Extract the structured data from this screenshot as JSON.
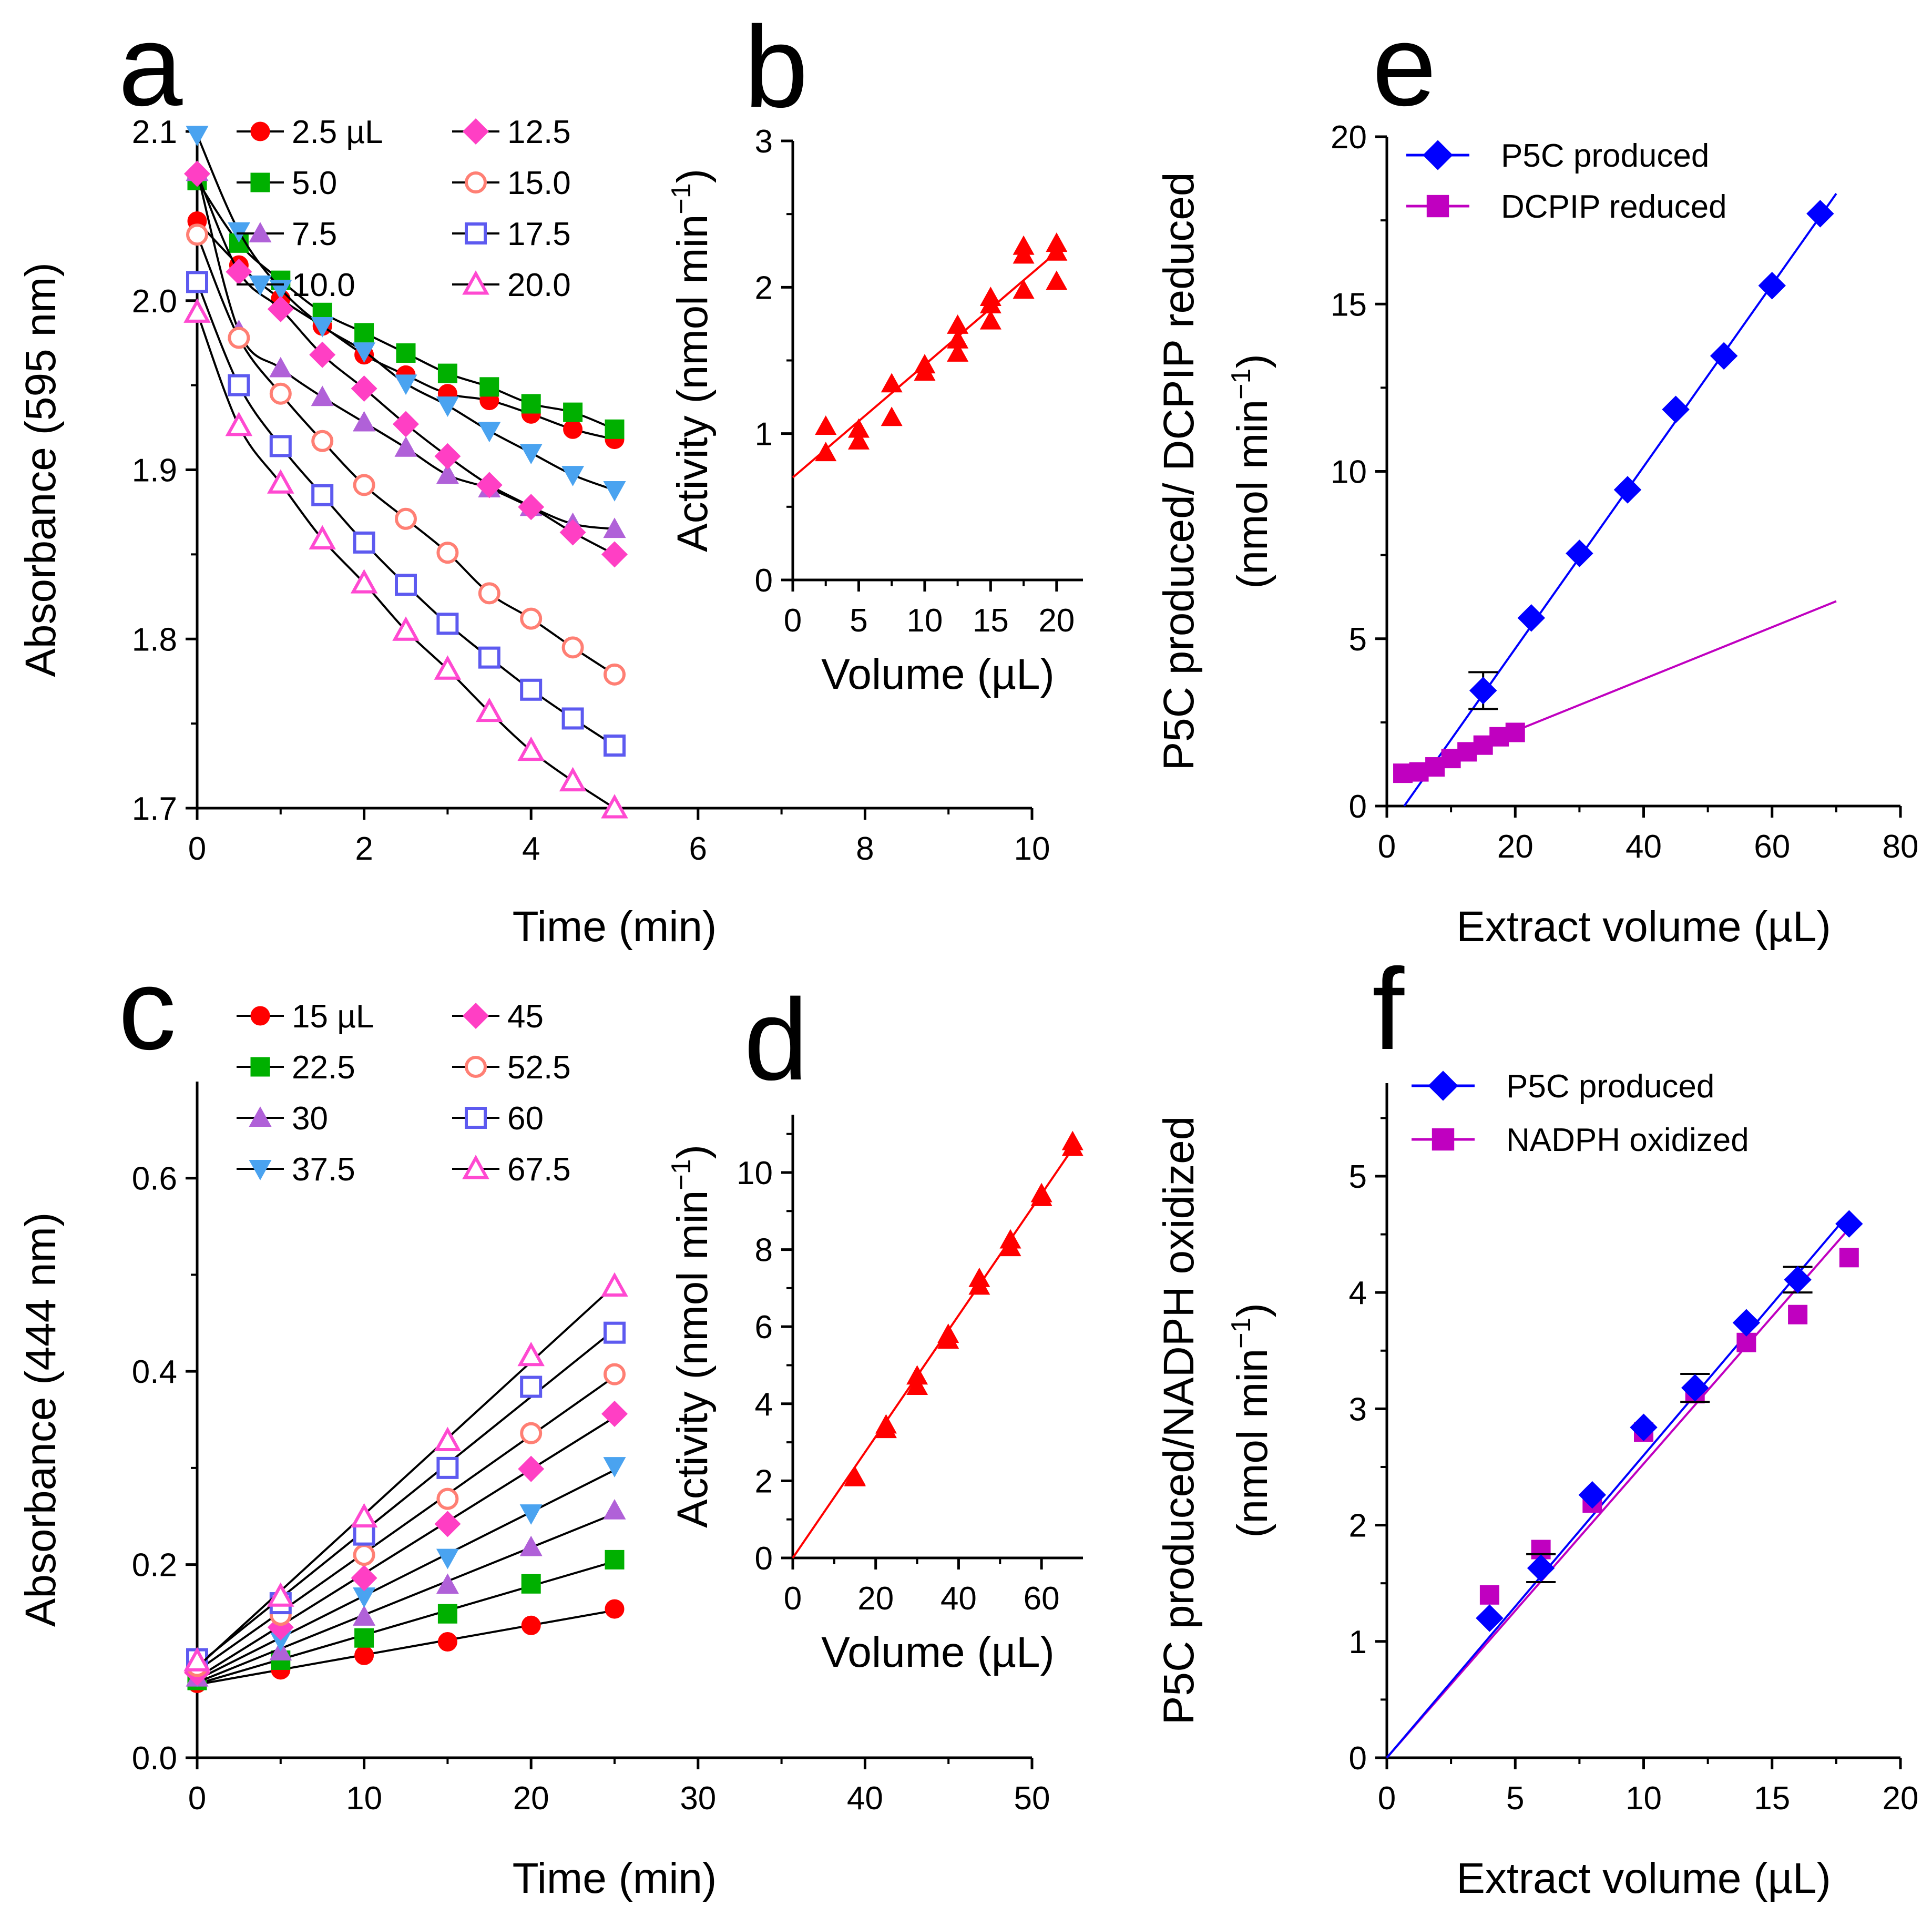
{
  "chart_data": [
    {
      "panel": "a",
      "type": "scatter",
      "xlabel": "Time (min)",
      "ylabel": "Absorbance (595 nm)",
      "xlim": [
        0,
        10
      ],
      "ylim": [
        1.7,
        2.1
      ],
      "xticks": [
        "0",
        "2",
        "4",
        "6",
        "8",
        "10"
      ],
      "yticks": [
        "1.7",
        "1.8",
        "1.9",
        "2.0",
        "2.1"
      ],
      "x": [
        0,
        0.5,
        1,
        1.5,
        2,
        2.5,
        3,
        3.5,
        4,
        4.5,
        5
      ],
      "series": [
        {
          "name": "2.5 µL",
          "marker": "circle-filled",
          "color": "#ff0000",
          "values": [
            2.047,
            2.021,
            2.001,
            1.985,
            1.968,
            1.956,
            1.945,
            1.941,
            1.933,
            1.924,
            1.918
          ]
        },
        {
          "name": "5.0",
          "marker": "square-filled",
          "color": "#00b000",
          "values": [
            2.071,
            2.034,
            2.012,
            1.993,
            1.981,
            1.969,
            1.957,
            1.949,
            1.939,
            1.934,
            1.924
          ]
        },
        {
          "name": "7.5",
          "marker": "triangle-up-filled",
          "color": "#b061d8",
          "values": [
            2.076,
            1.982,
            1.96,
            1.943,
            1.928,
            1.913,
            1.897,
            1.889,
            1.878,
            1.868,
            1.865
          ]
        },
        {
          "name": "10.0",
          "marker": "triangle-down-filled",
          "color": "#4aa3f0",
          "values": [
            2.098,
            2.041,
            2.007,
            1.985,
            1.97,
            1.951,
            1.938,
            1.923,
            1.91,
            1.897,
            1.888
          ]
        },
        {
          "name": "12.5",
          "marker": "diamond-filled",
          "color": "#ff3fc4",
          "values": [
            2.075,
            2.017,
            1.995,
            1.968,
            1.948,
            1.927,
            1.908,
            1.891,
            1.878,
            1.863,
            1.85
          ]
        },
        {
          "name": "15.0",
          "marker": "circle-open",
          "color": "#ff7f74",
          "values": [
            2.039,
            1.978,
            1.945,
            1.917,
            1.891,
            1.871,
            1.851,
            1.827,
            1.812,
            1.795,
            1.779
          ]
        },
        {
          "name": "17.5",
          "marker": "square-open",
          "color": "#5d5af0",
          "values": [
            2.011,
            1.95,
            1.914,
            1.885,
            1.857,
            1.832,
            1.809,
            1.789,
            1.77,
            1.753,
            1.737
          ]
        },
        {
          "name": "20.0",
          "marker": "triangle-open",
          "color": "#ff49d1",
          "values": [
            1.993,
            1.926,
            1.892,
            1.859,
            1.833,
            1.805,
            1.782,
            1.757,
            1.734,
            1.716,
            1.7
          ]
        }
      ]
    },
    {
      "panel": "b",
      "type": "scatter",
      "xlabel": "Volume (µL)",
      "ylabel": "Activity (nmol min",
      "ylabel_sup": "−1",
      "ylabel_tail": ")",
      "xlim": [
        0,
        22
      ],
      "ylim": [
        0,
        3
      ],
      "xticks": [
        "0",
        "5",
        "10",
        "15",
        "20"
      ],
      "yticks": [
        "0",
        "1",
        "2",
        "3"
      ],
      "color": "#ff0000",
      "points": [
        {
          "x": 2.5,
          "y": 0.87
        },
        {
          "x": 2.5,
          "y": 1.05
        },
        {
          "x": 5.0,
          "y": 0.95
        },
        {
          "x": 5.0,
          "y": 1.03
        },
        {
          "x": 7.5,
          "y": 1.11
        },
        {
          "x": 7.5,
          "y": 1.34
        },
        {
          "x": 10.0,
          "y": 1.42
        },
        {
          "x": 10.0,
          "y": 1.47
        },
        {
          "x": 12.5,
          "y": 1.55
        },
        {
          "x": 12.5,
          "y": 1.64
        },
        {
          "x": 12.5,
          "y": 1.74
        },
        {
          "x": 15.0,
          "y": 1.77
        },
        {
          "x": 15.0,
          "y": 1.88
        },
        {
          "x": 15.0,
          "y": 1.93
        },
        {
          "x": 17.5,
          "y": 1.98
        },
        {
          "x": 17.5,
          "y": 2.22
        },
        {
          "x": 17.5,
          "y": 2.28
        },
        {
          "x": 20.0,
          "y": 2.04
        },
        {
          "x": 20.0,
          "y": 2.24
        },
        {
          "x": 20.0,
          "y": 2.3
        }
      ],
      "fit": {
        "x": [
          0,
          20
        ],
        "y": [
          0.7,
          2.24
        ]
      }
    },
    {
      "panel": "c",
      "type": "scatter",
      "xlabel": "Time (min)",
      "ylabel": "Absorbance (444 nm)",
      "xlim": [
        0,
        50
      ],
      "ylim": [
        0,
        0.7
      ],
      "xticks": [
        "0",
        "10",
        "20",
        "30",
        "40",
        "50"
      ],
      "yticks": [
        "0.0",
        "0.2",
        "0.4",
        "0.6"
      ],
      "x": [
        0,
        5,
        10,
        15,
        20,
        25
      ],
      "series": [
        {
          "name": "15 µL",
          "marker": "circle-filled",
          "color": "#ff0000",
          "values": [
            0.077,
            0.091,
            0.106,
            0.12,
            0.137,
            0.154
          ]
        },
        {
          "name": "22.5",
          "marker": "square-filled",
          "color": "#00b000",
          "values": [
            0.08,
            0.101,
            0.124,
            0.149,
            0.18,
            0.205
          ]
        },
        {
          "name": "30",
          "marker": "triangle-up-filled",
          "color": "#b061d8",
          "values": [
            0.083,
            0.11,
            0.146,
            0.179,
            0.218,
            0.256
          ]
        },
        {
          "name": "37.5",
          "marker": "triangle-down-filled",
          "color": "#4aa3f0",
          "values": [
            0.085,
            0.122,
            0.167,
            0.207,
            0.253,
            0.302
          ]
        },
        {
          "name": "45",
          "marker": "diamond-filled",
          "color": "#ff3fc4",
          "values": [
            0.088,
            0.135,
            0.186,
            0.242,
            0.299,
            0.356
          ]
        },
        {
          "name": "52.5",
          "marker": "circle-open",
          "color": "#ff7f74",
          "values": [
            0.095,
            0.148,
            0.21,
            0.268,
            0.336,
            0.397
          ]
        },
        {
          "name": "60",
          "marker": "square-open",
          "color": "#5d5af0",
          "values": [
            0.102,
            0.16,
            0.231,
            0.3,
            0.384,
            0.44
          ]
        },
        {
          "name": "67.5",
          "marker": "triangle-open",
          "color": "#ff49d1",
          "values": [
            0.1,
            0.167,
            0.249,
            0.328,
            0.416,
            0.488
          ]
        }
      ]
    },
    {
      "panel": "d",
      "type": "scatter",
      "xlabel": "Volume (µL)",
      "ylabel": "Activity (nmol min",
      "ylabel_sup": "−1",
      "ylabel_tail": ")",
      "xlim": [
        0,
        70
      ],
      "ylim": [
        0,
        11.5
      ],
      "xticks": [
        "0",
        "20",
        "40",
        "60"
      ],
      "yticks": [
        "0",
        "2",
        "4",
        "6",
        "8",
        "10"
      ],
      "color": "#ff0000",
      "points": [
        {
          "x": 15,
          "y": 2.08
        },
        {
          "x": 15,
          "y": 2.1
        },
        {
          "x": 22.5,
          "y": 3.33
        },
        {
          "x": 22.5,
          "y": 3.45
        },
        {
          "x": 30,
          "y": 4.45
        },
        {
          "x": 30,
          "y": 4.72
        },
        {
          "x": 37.5,
          "y": 5.65
        },
        {
          "x": 37.5,
          "y": 5.8
        },
        {
          "x": 45,
          "y": 7.05
        },
        {
          "x": 45,
          "y": 7.25
        },
        {
          "x": 52.5,
          "y": 8.05
        },
        {
          "x": 52.5,
          "y": 8.25
        },
        {
          "x": 60,
          "y": 9.35
        },
        {
          "x": 60,
          "y": 9.45
        },
        {
          "x": 67.5,
          "y": 10.65
        },
        {
          "x": 67.5,
          "y": 10.8
        }
      ],
      "fit": {
        "x": [
          0,
          68
        ],
        "y": [
          0,
          10.7
        ]
      }
    },
    {
      "panel": "e",
      "type": "scatter",
      "xlabel": "Extract volume (µL)",
      "ylabel_line1": "P5C produced/ DCPIP reduced",
      "ylabel_line2": "(nmol min",
      "ylabel_sup": "−1",
      "ylabel_tail": ")",
      "xlim": [
        0,
        80
      ],
      "ylim": [
        0,
        20
      ],
      "xticks": [
        "0",
        "20",
        "40",
        "60",
        "80"
      ],
      "yticks": [
        "0",
        "5",
        "10",
        "15",
        "20"
      ],
      "series": [
        {
          "name": "P5C produced",
          "marker": "diamond-filled",
          "color": "#0000ff",
          "x": [
            15,
            22.5,
            30,
            37.5,
            45,
            52.5,
            60,
            67.5
          ],
          "y": [
            3.45,
            5.62,
            7.55,
            9.45,
            11.85,
            13.45,
            15.55,
            17.7
          ],
          "errors": [
            0.55,
            0,
            0,
            0,
            0,
            0,
            0,
            0
          ],
          "fit": {
            "x": [
              2.7,
              70
            ],
            "y": [
              0,
              18.3
            ]
          }
        },
        {
          "name": "DCPIP reduced",
          "marker": "square-filled",
          "color": "#c000c0",
          "x": [
            2.5,
            5,
            7.5,
            10,
            12.5,
            15,
            17.5,
            20
          ],
          "y": [
            0.98,
            1.02,
            1.17,
            1.42,
            1.62,
            1.82,
            2.07,
            2.2
          ],
          "fit": {
            "x": [
              2,
              70
            ],
            "y": [
              0.85,
              6.12
            ]
          }
        }
      ]
    },
    {
      "panel": "f",
      "type": "scatter",
      "xlabel": "Extract volume (µL)",
      "ylabel_line1": "P5C produced/NADPH oxidized",
      "ylabel_line2": "(nmol min",
      "ylabel_sup": "−1",
      "ylabel_tail": ")",
      "xlim": [
        0,
        20
      ],
      "ylim": [
        0,
        5.8
      ],
      "xticks": [
        "0",
        "5",
        "10",
        "15",
        "20"
      ],
      "yticks": [
        "0",
        "1",
        "2",
        "3",
        "4",
        "5"
      ],
      "series": [
        {
          "name": "P5C produced",
          "marker": "diamond-filled",
          "color": "#0000ff",
          "x": [
            4,
            6,
            8,
            10,
            12,
            14,
            16,
            18
          ],
          "y": [
            1.2,
            1.63,
            2.26,
            2.84,
            3.18,
            3.74,
            4.11,
            4.59
          ],
          "errors": [
            0,
            0.12,
            0,
            0,
            0.12,
            0,
            0.11,
            0
          ],
          "fit": {
            "x": [
              0,
              18
            ],
            "y": [
              0,
              4.68
            ]
          }
        },
        {
          "name": "NADPH oxidized",
          "marker": "square-filled",
          "color": "#c000c0",
          "x": [
            4,
            6,
            8,
            10,
            12,
            14,
            16,
            18
          ],
          "y": [
            1.4,
            1.79,
            2.19,
            2.8,
            3.13,
            3.57,
            3.81,
            4.3
          ],
          "fit": {
            "x": [
              0,
              18
            ],
            "y": [
              0,
              4.55
            ]
          }
        }
      ]
    }
  ]
}
